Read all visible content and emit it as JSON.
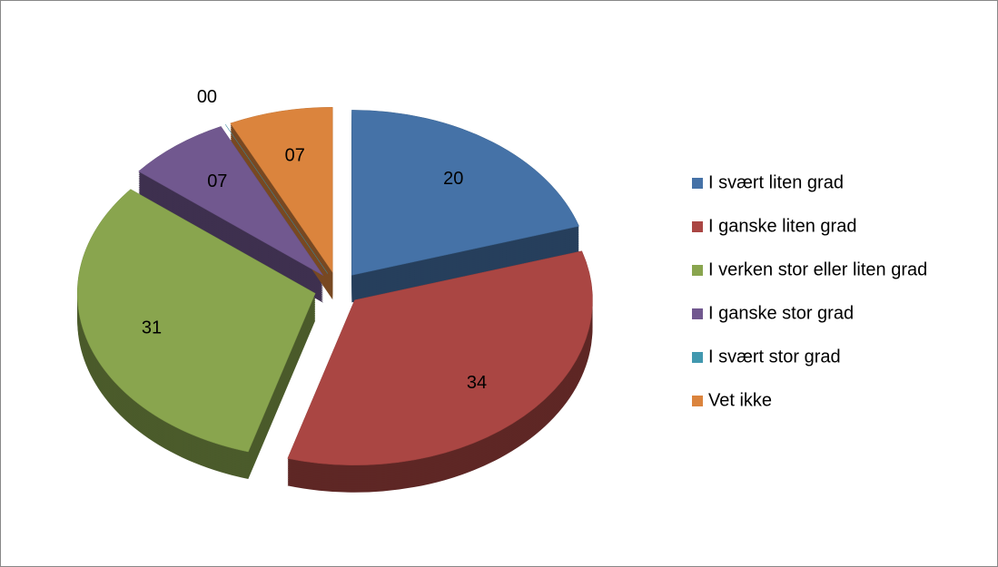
{
  "chart_data": {
    "type": "pie",
    "categories": [
      "I svært liten grad",
      "I ganske liten grad",
      "I verken stor eller liten grad",
      "I ganske stor grad",
      "I svært stor grad",
      "Vet ikke"
    ],
    "values": [
      20,
      34,
      31,
      7,
      0,
      7
    ],
    "value_labels": [
      "20",
      "34",
      "31",
      "07",
      "00",
      "07"
    ],
    "colors": [
      "#4572a7",
      "#aa4643",
      "#89a54e",
      "#71588f",
      "#4198af",
      "#db843d"
    ],
    "legend": "right"
  }
}
